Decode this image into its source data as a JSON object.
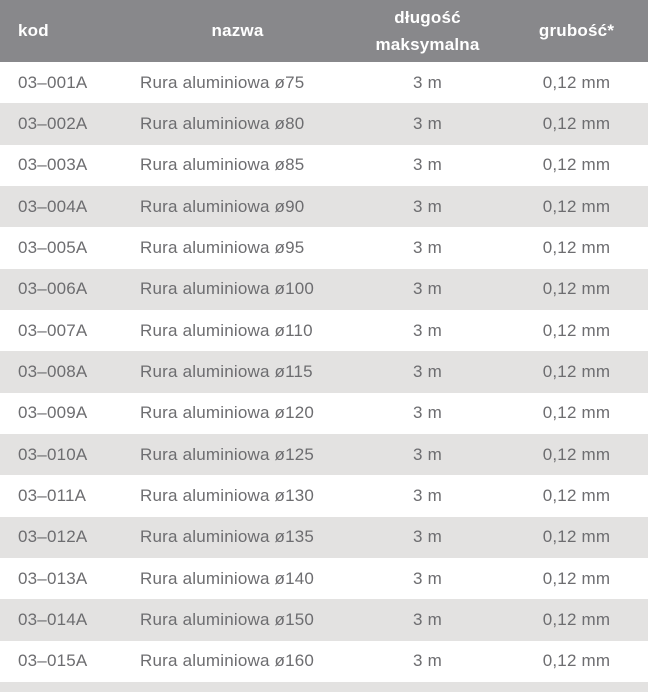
{
  "page": {
    "colors": {
      "header_bg": "#88888b",
      "header_text": "#ffffff",
      "row_bg": "#ffffff",
      "row_alt_bg": "#e3e2e1",
      "cell_text": "#6d6d70"
    },
    "header": {
      "kod": "kod",
      "nazwa": "nazwa",
      "dlugosc_line1": "długość",
      "dlugosc_line2": "maksymalna",
      "grubosc": "grubość*"
    },
    "rows": [
      {
        "kod": "03–001A",
        "nazwa": "Rura aluminiowa ø75",
        "dlugosc": "3 m",
        "grubosc": "0,12 mm"
      },
      {
        "kod": "03–002A",
        "nazwa": "Rura aluminiowa ø80",
        "dlugosc": "3 m",
        "grubosc": "0,12 mm"
      },
      {
        "kod": "03–003A",
        "nazwa": "Rura aluminiowa ø85",
        "dlugosc": "3 m",
        "grubosc": "0,12 mm"
      },
      {
        "kod": "03–004A",
        "nazwa": "Rura aluminiowa ø90",
        "dlugosc": "3 m",
        "grubosc": "0,12 mm"
      },
      {
        "kod": "03–005A",
        "nazwa": "Rura aluminiowa ø95",
        "dlugosc": "3 m",
        "grubosc": "0,12 mm"
      },
      {
        "kod": "03–006A",
        "nazwa": "Rura aluminiowa ø100",
        "dlugosc": "3 m",
        "grubosc": "0,12 mm"
      },
      {
        "kod": "03–007A",
        "nazwa": "Rura aluminiowa ø110",
        "dlugosc": "3 m",
        "grubosc": "0,12 mm"
      },
      {
        "kod": "03–008A",
        "nazwa": "Rura aluminiowa ø115",
        "dlugosc": "3 m",
        "grubosc": "0,12 mm"
      },
      {
        "kod": "03–009A",
        "nazwa": "Rura aluminiowa ø120",
        "dlugosc": "3 m",
        "grubosc": "0,12 mm"
      },
      {
        "kod": "03–010A",
        "nazwa": "Rura aluminiowa ø125",
        "dlugosc": "3 m",
        "grubosc": "0,12 mm"
      },
      {
        "kod": "03–011A",
        "nazwa": "Rura aluminiowa ø130",
        "dlugosc": "3 m",
        "grubosc": "0,12 mm"
      },
      {
        "kod": "03–012A",
        "nazwa": "Rura aluminiowa ø135",
        "dlugosc": "3 m",
        "grubosc": "0,12 mm"
      },
      {
        "kod": "03–013A",
        "nazwa": "Rura aluminiowa ø140",
        "dlugosc": "3 m",
        "grubosc": "0,12 mm"
      },
      {
        "kod": "03–014A",
        "nazwa": "Rura aluminiowa ø150",
        "dlugosc": "3 m",
        "grubosc": "0,12 mm"
      },
      {
        "kod": "03–015A",
        "nazwa": "Rura aluminiowa ø160",
        "dlugosc": "3 m",
        "grubosc": "0,12 mm"
      }
    ]
  }
}
